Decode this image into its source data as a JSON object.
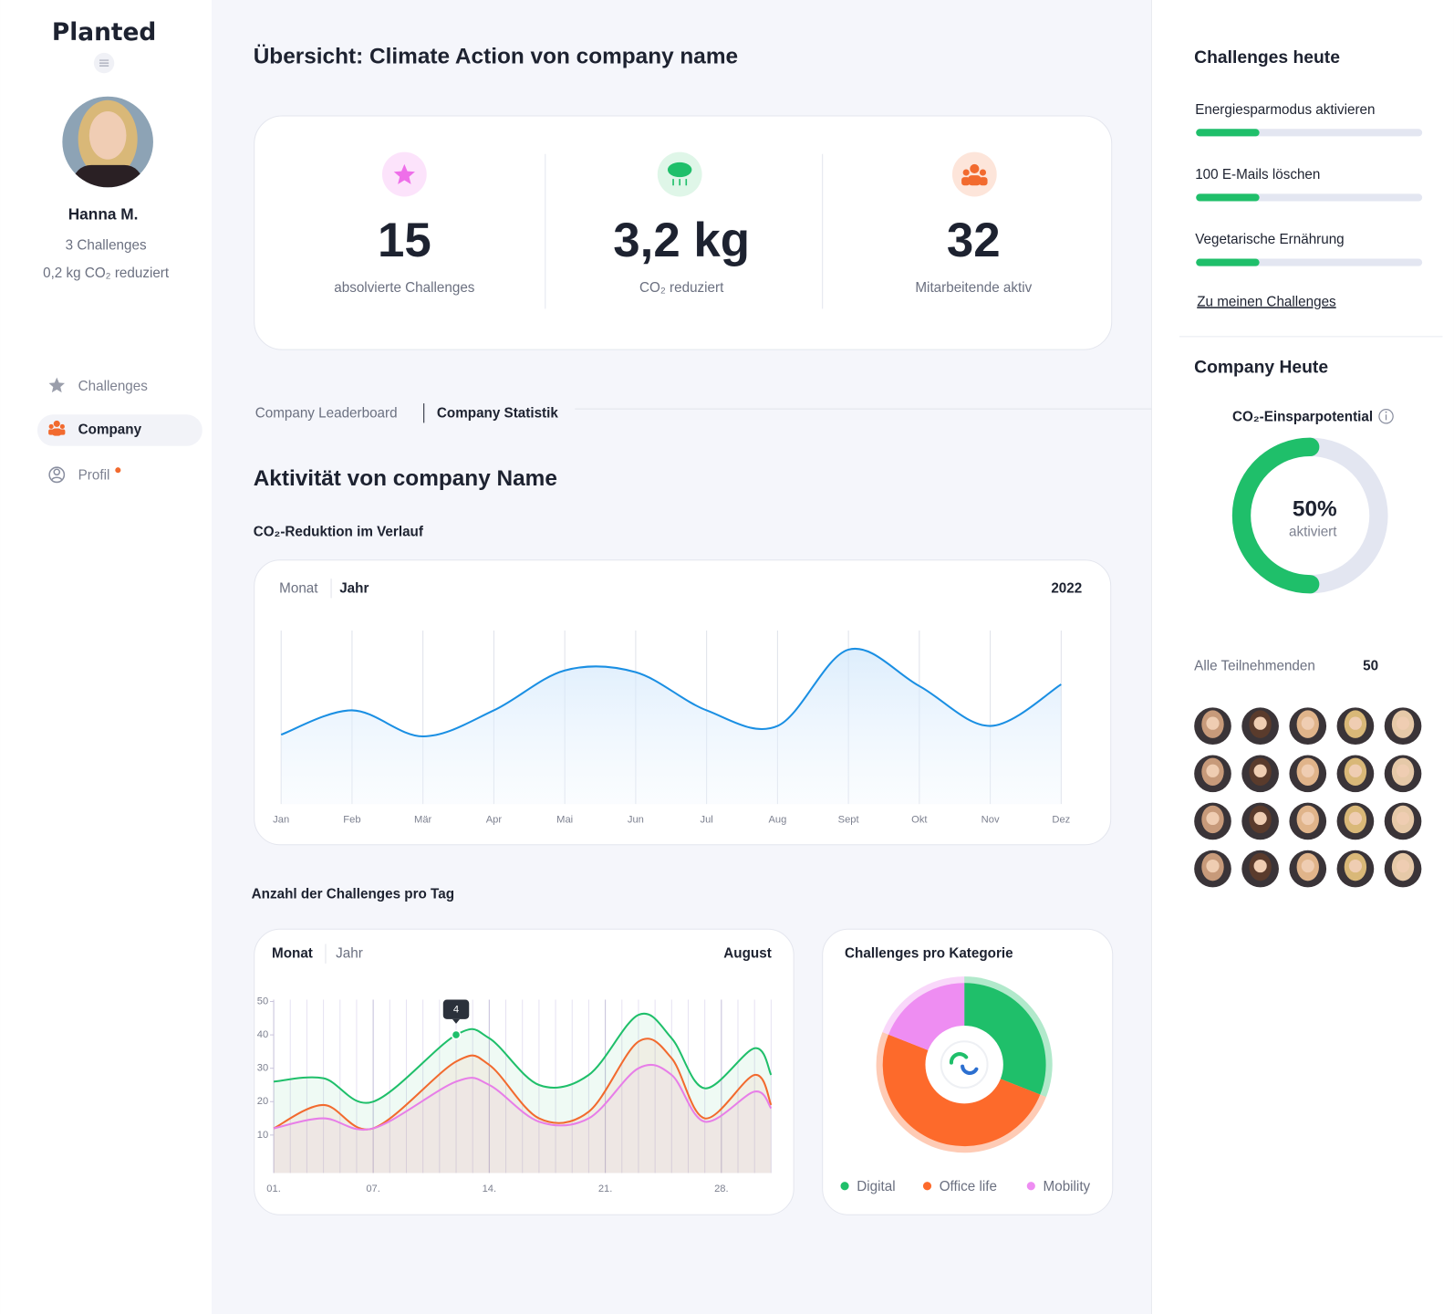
{
  "sidebar": {
    "logo": "Planted",
    "user": {
      "name": "Hanna M.",
      "challenges": "3 Challenges",
      "co2": "0,2 kg CO₂ reduziert"
    },
    "nav": [
      {
        "label": "Challenges"
      },
      {
        "label": "Company"
      },
      {
        "label": "Profil"
      }
    ]
  },
  "header": {
    "title": "Übersicht: Climate Action von company name"
  },
  "stats": [
    {
      "value": "15",
      "label": "absolvierte Challenges"
    },
    {
      "value": "3,2 kg",
      "label": "CO₂ reduziert"
    },
    {
      "value": "32",
      "label": "Mitarbeitende aktiv"
    }
  ],
  "tabs": [
    "Company Leaderboard",
    "Company Statistik"
  ],
  "section": {
    "title": "Aktivität von company Name",
    "chart1_label": "CO₂-Reduktion im Verlauf",
    "chart2_label": "Anzahl der Challenges pro Tag"
  },
  "chart_data": [
    {
      "type": "line",
      "period_tabs": [
        "Monat",
        "Jahr"
      ],
      "period": "2022",
      "categories": [
        "Jan",
        "Feb",
        "Mär",
        "Apr",
        "Mai",
        "Jun",
        "Jul",
        "Aug",
        "Sept",
        "Okt",
        "Nov",
        "Dez"
      ],
      "values": [
        40,
        54,
        39,
        54,
        77,
        76,
        54,
        45,
        89,
        68,
        45,
        69
      ],
      "color": "#1a8fe3",
      "ylim": [
        0,
        100
      ]
    },
    {
      "type": "line",
      "period_tabs": [
        "Monat",
        "Jahr"
      ],
      "period": "August",
      "x": [
        1,
        4,
        7,
        12,
        14,
        17,
        20,
        23,
        25,
        27,
        30,
        31
      ],
      "series": [
        {
          "color": "#1fbf6a",
          "values": [
            26,
            27,
            20,
            40,
            39,
            25,
            28,
            46,
            39,
            24,
            36,
            28
          ]
        },
        {
          "color": "#f26a2e",
          "values": [
            12,
            19,
            12,
            32,
            31,
            15,
            17,
            38,
            33,
            15,
            28,
            19
          ]
        },
        {
          "color": "#e77ee8",
          "values": [
            12,
            15,
            12,
            26,
            25,
            14,
            15,
            30,
            28,
            14,
            23,
            18
          ]
        }
      ],
      "xlim": [
        1,
        31
      ],
      "xticks": [
        {
          "value": 1,
          "label": "01."
        },
        {
          "value": 7,
          "label": "07."
        },
        {
          "value": 14,
          "label": "14."
        },
        {
          "value": 21,
          "label": "21."
        },
        {
          "value": 28,
          "label": "28."
        }
      ],
      "ylim": [
        0,
        52
      ],
      "yticks": [
        10,
        20,
        30,
        40,
        50
      ],
      "annotation": {
        "x": 12,
        "text": "4"
      }
    },
    {
      "type": "pie",
      "title": "Challenges pro Kategorie",
      "categories": [
        "Digital",
        "Office life",
        "Mobility"
      ],
      "values": [
        31,
        50,
        19
      ],
      "colors": [
        "#1fbf6a",
        "#fd6a2b",
        "#ee8df2"
      ]
    },
    {
      "type": "donut",
      "title": "CO₂-Einsparpotential",
      "values": [
        50
      ],
      "value_labels": [
        "50%"
      ],
      "subtitle": "aktiviert",
      "color": "#1fbf6a"
    }
  ],
  "today": {
    "title": "Challenges heute",
    "challenges": [
      {
        "label": "Energiesparmodus aktivieren",
        "progress": 28
      },
      {
        "label": "100 E-Mails löschen",
        "progress": 28
      },
      {
        "label": "Vegetarische Ernährung",
        "progress": 28
      }
    ],
    "link": "Zu meinen Challenges",
    "company_title": "Company Heute",
    "participants": {
      "label": "Alle Teilnehmenden",
      "count": "50"
    }
  }
}
